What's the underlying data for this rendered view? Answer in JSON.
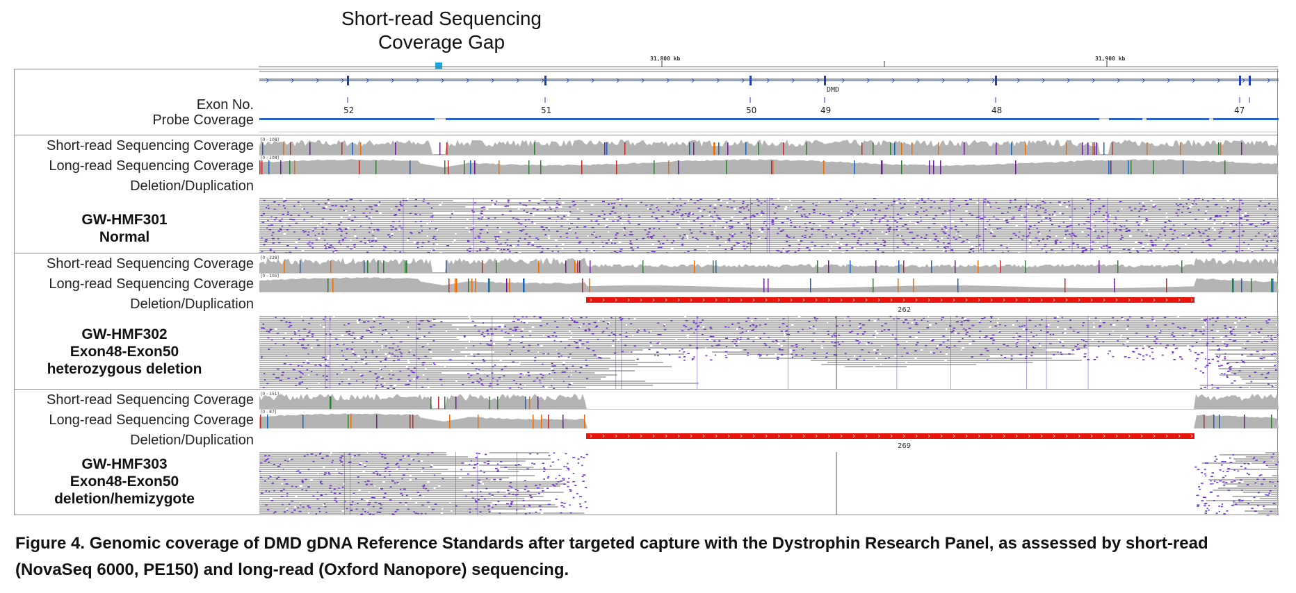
{
  "annotation": {
    "gap_title": "Short-read Sequencing Coverage Gap",
    "arrow_color": "#1aa7e0"
  },
  "axis": {
    "left_label": "31,800 kb",
    "right_label": "31,900 kb"
  },
  "gene": {
    "name": "DMD",
    "exon_numbers": [
      "52",
      "51",
      "50",
      "49",
      "48",
      "47"
    ]
  },
  "reference_labels": {
    "exon": "Exon No.",
    "probe": "Probe Coverage"
  },
  "track_labels": {
    "short_read": "Short-read Sequencing Coverage",
    "long_read": "Long-read Sequencing Coverage",
    "deletion": "Deletion/Duplication"
  },
  "samples": [
    {
      "line1": "GW-HMF301",
      "line2": "Normal",
      "line3": "",
      "deletion": false,
      "deletion_count": "",
      "short_scale": "[0 - 108]",
      "long_scale": "[0 - 108]"
    },
    {
      "line1": "GW-HMF302",
      "line2": "Exon48-Exon50",
      "line3": "heterozygous deletion",
      "deletion": true,
      "deletion_count": "262",
      "short_scale": "[0 - 228]",
      "long_scale": "[0 - 105]"
    },
    {
      "line1": "GW-HMF303",
      "line2": "Exon48-Exon50",
      "line3": "deletion/hemizygote",
      "deletion": true,
      "deletion_count": "269",
      "short_scale": "[0 - 151]",
      "long_scale": "[0 - 87]"
    }
  ],
  "colors": {
    "coverage_gray": "#b4b4b4",
    "read_purple": "#6a2fd8",
    "deletion_red": "#e8150c",
    "gene_blue": "#1f3fb0",
    "probe_blue": "#2a62c8"
  },
  "caption": "Figure 4. Genomic coverage of DMD gDNA Reference Standards after targeted capture with the Dystrophin Research Panel, as assessed by short-read (NovaSeq 6000, PE150) and long-read (Oxford Nanopore) sequencing."
}
